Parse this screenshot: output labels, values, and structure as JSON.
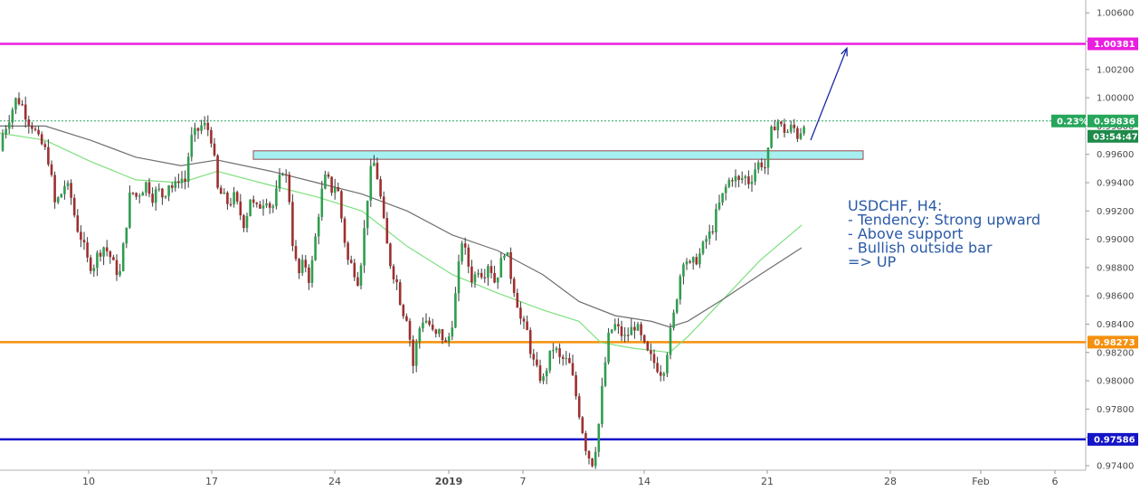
{
  "chart_data": {
    "type": "candlestick",
    "symbol_timeframe": "USDCHF, H4",
    "y_axis": {
      "range": [
        0.9736,
        1.0072
      ],
      "ticks": [
        "1.00600",
        "1.00400",
        "1.00200",
        "1.00000",
        "0.99800",
        "0.99600",
        "0.99400",
        "0.99200",
        "0.99000",
        "0.98800",
        "0.98600",
        "0.98400",
        "0.98200",
        "0.98000",
        "0.97800",
        "0.97600",
        "0.97400"
      ]
    },
    "x_axis": {
      "ticks": [
        "10",
        "17",
        "24",
        "2019",
        "7",
        "14",
        "21",
        "28",
        "Feb",
        "6"
      ]
    },
    "horizontal_levels": [
      {
        "label": "1.00381",
        "value": 1.00381,
        "color": "#e91ee0"
      },
      {
        "label": "0.98273",
        "value": 0.98273,
        "color": "#f5900c"
      },
      {
        "label": "0.97586",
        "value": 0.97586,
        "color": "#1414c8"
      }
    ],
    "current_price": {
      "label": "0.99836",
      "value": 0.99836,
      "change": "0.23%",
      "countdown": "03:54:47",
      "color": "#26a65b"
    },
    "support_zone": {
      "from": 0.99565,
      "to": 0.99625,
      "color": "#a6f0f2"
    },
    "candle_path": [
      [
        0,
        0.994
      ],
      [
        4,
        0.997
      ],
      [
        10,
        0.998
      ],
      [
        16,
        0.999
      ],
      [
        22,
        1.0
      ],
      [
        28,
        0.9995
      ],
      [
        34,
        0.9985
      ],
      [
        40,
        0.998
      ],
      [
        46,
        0.997
      ],
      [
        52,
        0.9965
      ],
      [
        58,
        0.9955
      ],
      [
        64,
        0.9925
      ],
      [
        70,
        0.993
      ],
      [
        76,
        0.994
      ],
      [
        82,
        0.993
      ],
      [
        88,
        0.991
      ],
      [
        94,
        0.99
      ],
      [
        100,
        0.9885
      ],
      [
        106,
        0.988
      ],
      [
        112,
        0.989
      ],
      [
        118,
        0.9895
      ],
      [
        124,
        0.989
      ],
      [
        130,
        0.988
      ],
      [
        136,
        0.9875
      ],
      [
        142,
        0.9905
      ],
      [
        148,
        0.9935
      ],
      [
        154,
        0.993
      ],
      [
        160,
        0.9935
      ],
      [
        166,
        0.994
      ],
      [
        172,
        0.993
      ],
      [
        178,
        0.9935
      ],
      [
        184,
        0.993
      ],
      [
        190,
        0.994
      ],
      [
        196,
        0.9935
      ],
      [
        202,
        0.9945
      ],
      [
        208,
        0.994
      ],
      [
        214,
        0.997
      ],
      [
        220,
        0.9975
      ],
      [
        226,
        0.998
      ],
      [
        232,
        0.998
      ],
      [
        238,
        0.997
      ],
      [
        244,
        0.9935
      ],
      [
        250,
        0.993
      ],
      [
        256,
        0.9925
      ],
      [
        262,
        0.993
      ],
      [
        268,
        0.992
      ],
      [
        274,
        0.991
      ],
      [
        280,
        0.993
      ],
      [
        286,
        0.992
      ],
      [
        292,
        0.9925
      ],
      [
        298,
        0.993
      ],
      [
        304,
        0.992
      ],
      [
        310,
        0.9935
      ],
      [
        316,
        0.995
      ],
      [
        322,
        0.994
      ],
      [
        328,
        0.989
      ],
      [
        334,
        0.9875
      ],
      [
        340,
        0.9885
      ],
      [
        346,
        0.987
      ],
      [
        352,
        0.99
      ],
      [
        358,
        0.993
      ],
      [
        364,
        0.9945
      ],
      [
        370,
        0.9935
      ],
      [
        376,
        0.994
      ],
      [
        382,
        0.991
      ],
      [
        388,
        0.9885
      ],
      [
        394,
        0.988
      ],
      [
        400,
        0.987
      ],
      [
        406,
        0.9905
      ],
      [
        412,
        0.9945
      ],
      [
        418,
        0.9955
      ],
      [
        424,
        0.993
      ],
      [
        430,
        0.99
      ],
      [
        436,
        0.988
      ],
      [
        442,
        0.987
      ],
      [
        448,
        0.985
      ],
      [
        454,
        0.9845
      ],
      [
        460,
        0.981
      ],
      [
        466,
        0.9835
      ],
      [
        472,
        0.9845
      ],
      [
        478,
        0.984
      ],
      [
        484,
        0.983
      ],
      [
        490,
        0.9835
      ],
      [
        496,
        0.9825
      ],
      [
        502,
        0.9835
      ],
      [
        508,
        0.9865
      ],
      [
        514,
        0.99
      ],
      [
        520,
        0.9885
      ],
      [
        526,
        0.987
      ],
      [
        532,
        0.988
      ],
      [
        538,
        0.9875
      ],
      [
        544,
        0.9885
      ],
      [
        550,
        0.987
      ],
      [
        556,
        0.988
      ],
      [
        562,
        0.9895
      ],
      [
        568,
        0.9875
      ],
      [
        574,
        0.986
      ],
      [
        580,
        0.984
      ],
      [
        586,
        0.9835
      ],
      [
        592,
        0.9815
      ],
      [
        598,
        0.9805
      ],
      [
        604,
        0.98
      ],
      [
        610,
        0.9815
      ],
      [
        616,
        0.9825
      ],
      [
        622,
        0.9815
      ],
      [
        628,
        0.9815
      ],
      [
        634,
        0.981
      ],
      [
        640,
        0.979
      ],
      [
        646,
        0.977
      ],
      [
        652,
        0.975
      ],
      [
        658,
        0.9742
      ],
      [
        664,
        0.976
      ],
      [
        670,
        0.98
      ],
      [
        676,
        0.983
      ],
      [
        682,
        0.984
      ],
      [
        688,
        0.9835
      ],
      [
        694,
        0.983
      ],
      [
        700,
        0.9835
      ],
      [
        706,
        0.984
      ],
      [
        712,
        0.983
      ],
      [
        718,
        0.982
      ],
      [
        724,
        0.9815
      ],
      [
        730,
        0.981
      ],
      [
        736,
        0.9805
      ],
      [
        742,
        0.9825
      ],
      [
        748,
        0.9845
      ],
      [
        754,
        0.987
      ],
      [
        760,
        0.989
      ],
      [
        766,
        0.988
      ],
      [
        772,
        0.9885
      ],
      [
        778,
        0.989
      ],
      [
        784,
        0.99
      ],
      [
        790,
        0.9905
      ],
      [
        796,
        0.992
      ],
      [
        802,
        0.993
      ],
      [
        808,
        0.994
      ],
      [
        814,
        0.9945
      ],
      [
        820,
        0.994
      ],
      [
        826,
        0.9945
      ],
      [
        832,
        0.994
      ],
      [
        838,
        0.995
      ],
      [
        844,
        0.9955
      ],
      [
        850,
        0.995
      ],
      [
        856,
        0.9975
      ],
      [
        862,
        0.9985
      ],
      [
        868,
        0.9978
      ],
      [
        874,
        0.9976
      ],
      [
        880,
        0.998
      ],
      [
        886,
        0.9972
      ],
      [
        892,
        0.99836
      ]
    ],
    "ma_gray": [
      [
        0,
        0.998
      ],
      [
        50,
        0.998
      ],
      [
        100,
        0.997
      ],
      [
        150,
        0.9958
      ],
      [
        200,
        0.9952
      ],
      [
        240,
        0.9956
      ],
      [
        300,
        0.9948
      ],
      [
        350,
        0.994
      ],
      [
        400,
        0.9932
      ],
      [
        450,
        0.992
      ],
      [
        500,
        0.9903
      ],
      [
        550,
        0.9892
      ],
      [
        600,
        0.9875
      ],
      [
        640,
        0.9856
      ],
      [
        680,
        0.9846
      ],
      [
        720,
        0.9842
      ],
      [
        740,
        0.9838
      ],
      [
        760,
        0.9842
      ],
      [
        800,
        0.9858
      ],
      [
        840,
        0.9875
      ],
      [
        886,
        0.9894
      ]
    ],
    "ma_green": [
      [
        0,
        0.9975
      ],
      [
        50,
        0.997
      ],
      [
        100,
        0.9955
      ],
      [
        150,
        0.9942
      ],
      [
        200,
        0.994
      ],
      [
        240,
        0.9948
      ],
      [
        300,
        0.9938
      ],
      [
        350,
        0.993
      ],
      [
        400,
        0.992
      ],
      [
        450,
        0.9895
      ],
      [
        500,
        0.9875
      ],
      [
        550,
        0.9862
      ],
      [
        600,
        0.985
      ],
      [
        640,
        0.9842
      ],
      [
        664,
        0.9827
      ],
      [
        700,
        0.9823
      ],
      [
        740,
        0.982
      ],
      [
        760,
        0.9831
      ],
      [
        800,
        0.9858
      ],
      [
        840,
        0.9885
      ],
      [
        886,
        0.991
      ]
    ],
    "arrow": {
      "from": [
        896,
        0.997
      ],
      "to": [
        936,
        1.0035
      ],
      "color": "#1a2aa8"
    },
    "annotation": {
      "lines": [
        "USDCHF, H4:",
        "- Tendency: Strong upward",
        "- Above support",
        "- Bullish outside bar",
        "=> UP"
      ]
    }
  }
}
